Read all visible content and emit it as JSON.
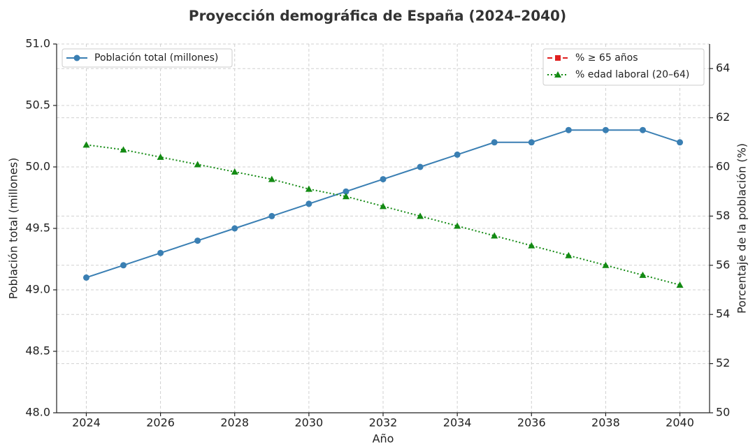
{
  "chart_data": {
    "type": "line",
    "title": "Proyección demográfica de España (2024–2040)",
    "xlabel": "Año",
    "ylabel": "Población total (millones)",
    "y2label": "Porcentaje de la población (%)",
    "x": [
      2024,
      2025,
      2026,
      2027,
      2028,
      2029,
      2030,
      2031,
      2032,
      2033,
      2034,
      2035,
      2036,
      2037,
      2038,
      2039,
      2040
    ],
    "series": [
      {
        "name": "Población total (millones)",
        "color": "#3a7fb3",
        "linestyle": "solid",
        "marker": "circle",
        "axis": "y",
        "values": [
          49.1,
          49.2,
          49.3,
          49.4,
          49.5,
          49.6,
          49.7,
          49.8,
          49.9,
          50.0,
          50.1,
          50.2,
          50.2,
          50.3,
          50.3,
          50.3,
          50.2
        ]
      },
      {
        "name": "% ≥ 65 años",
        "color": "#e02020",
        "linestyle": "dashed",
        "marker": "square",
        "axis": "y2",
        "values": [
          null,
          null,
          null,
          null,
          null,
          null,
          null,
          null,
          null,
          null,
          null,
          null,
          null,
          null,
          null,
          null,
          null
        ]
      },
      {
        "name": "% edad laboral (20–64)",
        "color": "#138a13",
        "linestyle": "dotted",
        "marker": "triangle",
        "axis": "y2",
        "values": [
          60.9,
          60.7,
          60.4,
          60.1,
          59.8,
          59.5,
          59.1,
          58.8,
          58.4,
          58.0,
          57.6,
          57.2,
          56.8,
          56.4,
          56.0,
          55.6,
          55.2
        ]
      }
    ],
    "xlim": [
      2023.2,
      2040.8
    ],
    "xticks": [
      2024,
      2026,
      2028,
      2030,
      2032,
      2034,
      2036,
      2038,
      2040
    ],
    "ylim": [
      48.0,
      51.0
    ],
    "yticks": [
      {
        "value": 48.0,
        "label": "48.0"
      },
      {
        "value": 48.5,
        "label": "48.5"
      },
      {
        "value": 49.0,
        "label": "49.0"
      },
      {
        "value": 49.5,
        "label": "49.5"
      },
      {
        "value": 50.0,
        "label": "50.0"
      },
      {
        "value": 50.5,
        "label": "50.5"
      },
      {
        "value": 51.0,
        "label": "51.0"
      }
    ],
    "y2lim": [
      50,
      65
    ],
    "y2ticks": [
      50,
      52,
      54,
      56,
      58,
      60,
      62,
      64
    ],
    "grid": true,
    "legend": {
      "y": "upper left",
      "y2": "upper right"
    }
  }
}
